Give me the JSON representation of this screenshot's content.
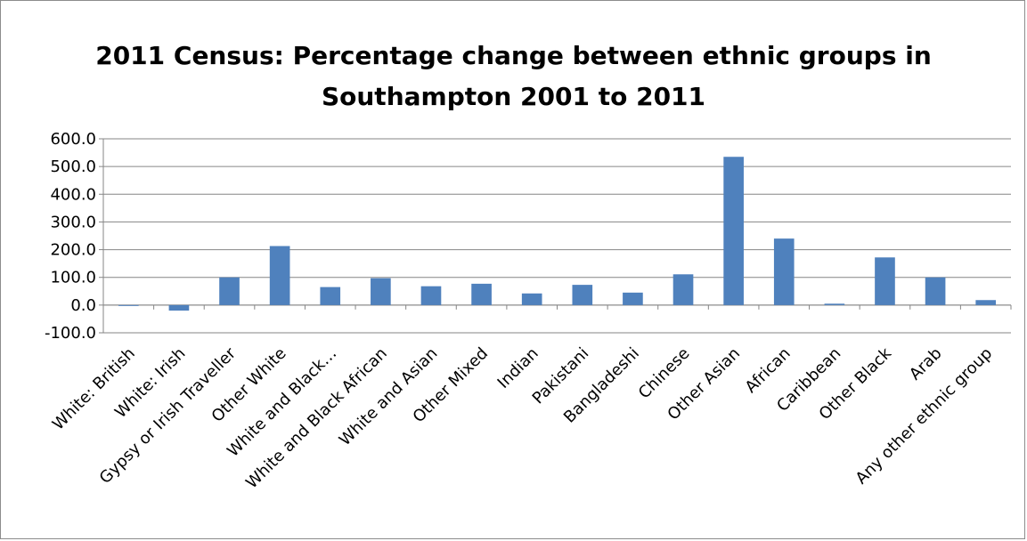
{
  "chart_data": {
    "type": "bar",
    "title_line1": "2011 Census: Percentage change between ethnic groups in",
    "title_line2": "Southampton 2001 to 2011",
    "categories": [
      "White: British",
      "White: Irish",
      "Gypsy or Irish Traveller",
      "Other White",
      "White and Black…",
      "White and Black African",
      "White and Asian",
      "Other Mixed",
      "Indian",
      "Pakistani",
      "Bangladeshi",
      "Chinese",
      "Other Asian",
      "African",
      "Caribbean",
      "Other Black",
      "Arab",
      "Any other ethnic group"
    ],
    "values": [
      -2,
      -20,
      100,
      213,
      65,
      97,
      68,
      77,
      42,
      73,
      45,
      111,
      535,
      240,
      5,
      172,
      100,
      18
    ],
    "ylim": [
      -100,
      600
    ],
    "yticks": [
      "600.0",
      "500.0",
      "400.0",
      "300.0",
      "200.0",
      "100.0",
      "0.0",
      "-100.0"
    ],
    "gridlines": true,
    "legend": "none",
    "bar_color": "#4f81bd"
  }
}
